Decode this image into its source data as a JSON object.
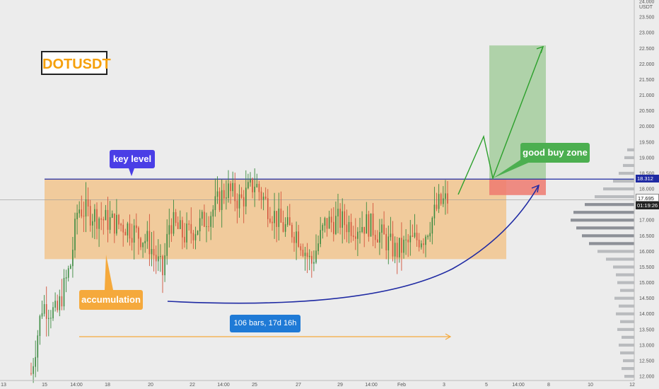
{
  "symbol": "DOTUSDT",
  "currency": "USDT",
  "annotations": {
    "key_level": "key level",
    "accumulation": "accumulation",
    "bars_range": "106 bars, 17d 16h",
    "good_buy_zone": "good buy zone"
  },
  "price_tags": {
    "key_level_price": "18.312",
    "last_price": "17.695",
    "countdown": "01:19:26"
  },
  "colors": {
    "background": "#ececec",
    "up_candle": "#3a8a3f",
    "down_candle": "#d3543c",
    "accumulation_zone": "#f2c894",
    "key_level_line": "#1f2aa3",
    "target_zone": "#a9cfa2",
    "stop_zone": "#ef7a70",
    "projection_line": "#2ca02c",
    "volume_profile": "#7c8088",
    "curve": "#1f2aa3",
    "range_arrow": "#f5a93c"
  },
  "price_axis": {
    "ticks": [
      "24.000",
      "23.500",
      "23.000",
      "22.500",
      "22.000",
      "21.500",
      "21.000",
      "20.500",
      "20.000",
      "19.500",
      "19.000",
      "18.500",
      "18.000",
      "17.500",
      "17.000",
      "16.500",
      "16.000",
      "15.500",
      "15.000",
      "14.500",
      "14.000",
      "13.500",
      "13.000",
      "12.500",
      "12.000"
    ],
    "range": [
      12.0,
      24.0
    ]
  },
  "time_axis": {
    "ticks": [
      "13",
      "15",
      "14:00",
      "18",
      "20",
      "22",
      "14:00",
      "25",
      "27",
      "29",
      "14:00",
      "Feb",
      "3",
      "5",
      "14:00",
      "8",
      "10",
      "12"
    ]
  },
  "chart_data": {
    "type": "candlestick",
    "key_level": 18.312,
    "last_price": 17.695,
    "accumulation_zone": {
      "low": 15.75,
      "high": 18.3
    },
    "trade_setup": {
      "entry": 18.3,
      "stop": 17.8,
      "target": 22.5
    },
    "visible_range_price": [
      12.0,
      24.0
    ]
  }
}
